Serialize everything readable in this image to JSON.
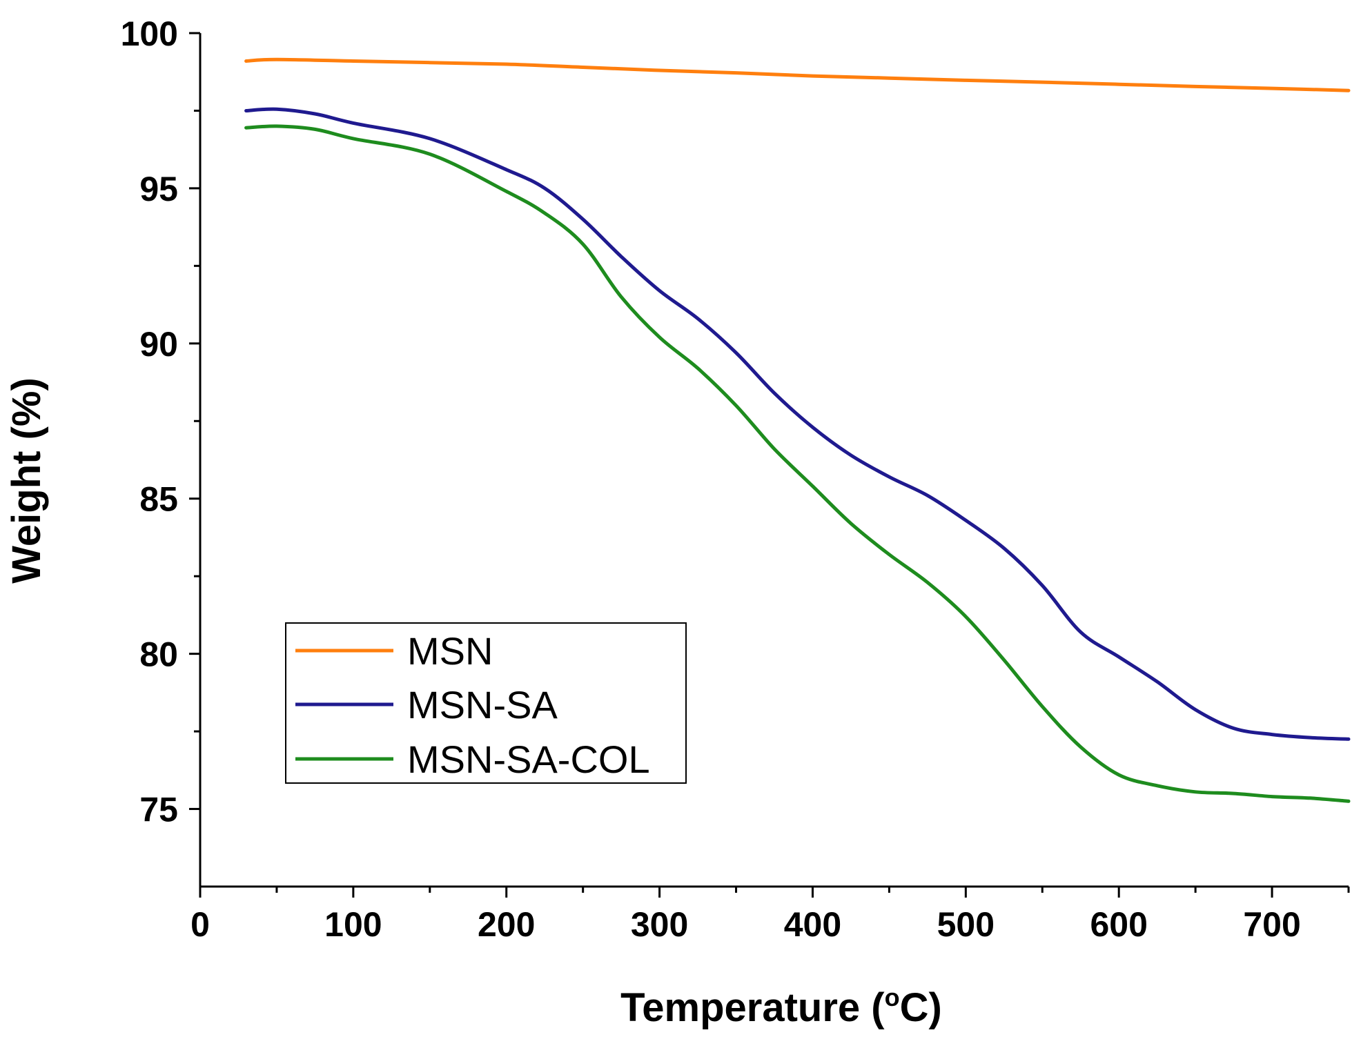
{
  "chart_data": {
    "type": "line",
    "title": "",
    "xlabel": "Temperature (",
    "xlabel_unit_sup": "o",
    "xlabel_unit_rest": "C)",
    "ylabel": "Weight (%)",
    "xlim": [
      0,
      750
    ],
    "ylim": [
      72.5,
      100
    ],
    "x_ticks": [
      0,
      100,
      200,
      300,
      400,
      500,
      600,
      700
    ],
    "y_ticks": [
      75,
      80,
      85,
      90,
      95,
      100
    ],
    "legend_position": "lower-left",
    "series": [
      {
        "name": "MSN",
        "color": "#ff7f0e",
        "points": [
          [
            30,
            99.1
          ],
          [
            50,
            99.15
          ],
          [
            100,
            99.1
          ],
          [
            150,
            99.05
          ],
          [
            200,
            99.0
          ],
          [
            250,
            98.9
          ],
          [
            300,
            98.8
          ],
          [
            350,
            98.72
          ],
          [
            400,
            98.62
          ],
          [
            450,
            98.55
          ],
          [
            500,
            98.48
          ],
          [
            550,
            98.42
          ],
          [
            600,
            98.35
          ],
          [
            650,
            98.28
          ],
          [
            700,
            98.22
          ],
          [
            750,
            98.15
          ]
        ]
      },
      {
        "name": "MSN-SA",
        "color": "#1f1a8f",
        "points": [
          [
            30,
            97.5
          ],
          [
            50,
            97.55
          ],
          [
            75,
            97.4
          ],
          [
            100,
            97.1
          ],
          [
            150,
            96.6
          ],
          [
            200,
            95.6
          ],
          [
            225,
            95.0
          ],
          [
            250,
            94.0
          ],
          [
            275,
            92.8
          ],
          [
            300,
            91.7
          ],
          [
            325,
            90.8
          ],
          [
            350,
            89.7
          ],
          [
            375,
            88.4
          ],
          [
            400,
            87.3
          ],
          [
            425,
            86.4
          ],
          [
            450,
            85.7
          ],
          [
            475,
            85.1
          ],
          [
            500,
            84.3
          ],
          [
            525,
            83.4
          ],
          [
            550,
            82.2
          ],
          [
            575,
            80.7
          ],
          [
            600,
            79.9
          ],
          [
            625,
            79.1
          ],
          [
            650,
            78.2
          ],
          [
            675,
            77.6
          ],
          [
            700,
            77.4
          ],
          [
            725,
            77.3
          ],
          [
            750,
            77.25
          ]
        ]
      },
      {
        "name": "MSN-SA-COL",
        "color": "#1e8c1e",
        "points": [
          [
            30,
            96.95
          ],
          [
            50,
            97.0
          ],
          [
            75,
            96.9
          ],
          [
            100,
            96.6
          ],
          [
            150,
            96.1
          ],
          [
            200,
            94.9
          ],
          [
            225,
            94.2
          ],
          [
            250,
            93.2
          ],
          [
            275,
            91.5
          ],
          [
            300,
            90.2
          ],
          [
            325,
            89.2
          ],
          [
            350,
            88.0
          ],
          [
            375,
            86.6
          ],
          [
            400,
            85.4
          ],
          [
            425,
            84.2
          ],
          [
            450,
            83.2
          ],
          [
            475,
            82.3
          ],
          [
            500,
            81.2
          ],
          [
            525,
            79.8
          ],
          [
            550,
            78.3
          ],
          [
            575,
            77.0
          ],
          [
            600,
            76.1
          ],
          [
            625,
            75.75
          ],
          [
            650,
            75.55
          ],
          [
            675,
            75.5
          ],
          [
            700,
            75.4
          ],
          [
            725,
            75.35
          ],
          [
            750,
            75.25
          ]
        ]
      }
    ]
  }
}
